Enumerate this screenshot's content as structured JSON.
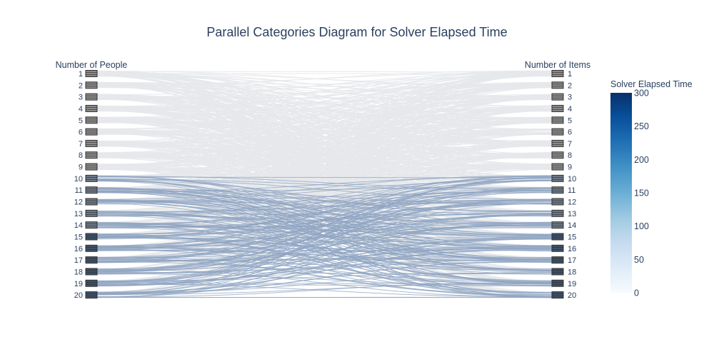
{
  "chart_data": {
    "type": "parallel-categories",
    "title": "Parallel Categories Diagram for Solver Elapsed Time",
    "dimensions": [
      {
        "label": "Number of People",
        "categories": [
          "1",
          "2",
          "3",
          "4",
          "5",
          "6",
          "7",
          "8",
          "9",
          "10",
          "11",
          "12",
          "13",
          "14",
          "15",
          "16",
          "17",
          "18",
          "19",
          "20"
        ]
      },
      {
        "label": "Number of Items",
        "categories": [
          "1",
          "2",
          "3",
          "4",
          "5",
          "6",
          "7",
          "8",
          "9",
          "10",
          "11",
          "12",
          "13",
          "14",
          "15",
          "16",
          "17",
          "18",
          "19",
          "20"
        ]
      }
    ],
    "colorbar": {
      "title": "Solver Elapsed Time",
      "ticks": [
        0,
        50,
        100,
        150,
        200,
        250,
        300
      ],
      "range": [
        0,
        300
      ],
      "colorscale": [
        "#f7fbff",
        "#deebf7",
        "#c6dbef",
        "#9ecae1",
        "#6baed6",
        "#4292c6",
        "#2171b5",
        "#08519c",
        "#08306b"
      ]
    },
    "line_color_low": "#e6e8eb",
    "line_color_high": "#8fa4c1"
  }
}
